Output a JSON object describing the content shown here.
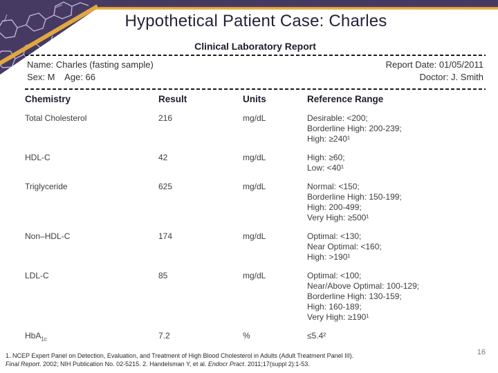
{
  "slide": {
    "title": "Hypothetical Patient Case: Charles",
    "page_number": "16"
  },
  "theme": {
    "purple": "#463A63",
    "gold": "#E2A73E",
    "pattern_stroke": "#CDBFE8",
    "title_color": "#232338",
    "body_text": "#3C3C3C",
    "page_number_gray": "#7A7A7A"
  },
  "report": {
    "heading": "Clinical Laboratory Report",
    "patient": {
      "name_line": "Name: Charles (fasting sample)",
      "sex_age_line": "Sex: M    Age: 66",
      "report_date_line": "Report Date: 01/05/2011",
      "doctor_line": "Doctor: J. Smith"
    },
    "table": {
      "headers": [
        "Chemistry",
        "Result",
        "Units",
        "Reference Range"
      ],
      "rows": [
        {
          "chemistry": "Total Cholesterol",
          "result": "216",
          "units": "mg/dL",
          "reference": [
            "Desirable: <200;",
            "Borderline High: 200-239;",
            "High: ≥240¹"
          ]
        },
        {
          "chemistry": "HDL-C",
          "result": "42",
          "units": "mg/dL",
          "reference": [
            "High: ≥60;",
            "Low: <40¹"
          ]
        },
        {
          "chemistry": "Triglyceride",
          "result": "625",
          "units": "mg/dL",
          "reference": [
            "Normal: <150;",
            "Borderline High: 150-199;",
            "High: 200-499;",
            "Very High: ≥500¹"
          ]
        },
        {
          "chemistry": "Non–HDL-C",
          "result": "174",
          "units": "mg/dL",
          "reference": [
            "Optimal: <130;",
            "Near Optimal: <160;",
            "High: >190¹"
          ]
        },
        {
          "chemistry": "LDL-C",
          "result": "85",
          "units": "mg/dL",
          "reference": [
            "Optimal: <100;",
            "Near/Above Optimal: 100-129;",
            "Borderline High: 130-159;",
            "High: 160-189;",
            "Very High: ≥190¹"
          ]
        },
        {
          "chemistry": "HbA",
          "chemistry_sub": "1c",
          "result": "7.2",
          "units": "%",
          "reference": [
            "≤5.4²"
          ]
        }
      ]
    }
  },
  "footnotes": {
    "line1": "1. NCEP Expert Panel on Detection, Evaluation, and Treatment of High Blood Cholesterol in Adults (Adult Treatment Panel III).",
    "line2_segments": [
      {
        "text": "Final Report",
        "italic": true
      },
      {
        "text": ". 2002; NIH Publication No. 02-5215. 2. Handelsman Y, et al. ",
        "italic": false
      },
      {
        "text": "Endocr Pract",
        "italic": true
      },
      {
        "text": ". 2011;17(suppl 2):1-53.",
        "italic": false
      }
    ]
  }
}
